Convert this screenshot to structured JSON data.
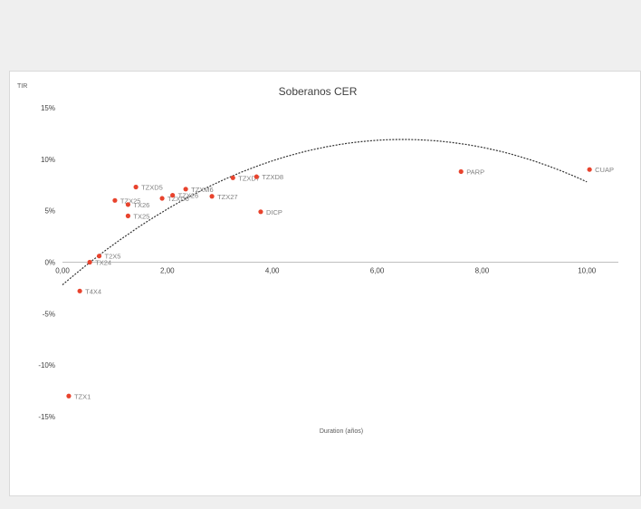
{
  "chart_data": {
    "type": "scatter",
    "title": "Soberanos CER",
    "xlabel": "Duration (años)",
    "ylabel": "TIR",
    "xlim": [
      0,
      10.6
    ],
    "ylim": [
      -15,
      15
    ],
    "x_ticks": [
      "0,00",
      "2,00",
      "4,00",
      "6,00",
      "8,00",
      "10,00"
    ],
    "x_tick_values": [
      0,
      2,
      4,
      6,
      8,
      10
    ],
    "y_ticks": [
      "15%",
      "10%",
      "5%",
      "0%",
      "-5%",
      "-10%",
      "-15%"
    ],
    "y_tick_values": [
      15,
      10,
      5,
      0,
      -5,
      -10,
      -15
    ],
    "grid": false,
    "marker_color": "#e8432d",
    "trend_color": "#333333",
    "trendline": {
      "type": "polynomial",
      "coefficients": [
        -2.2,
        4.35,
        -0.335
      ]
    },
    "points": [
      {
        "label": "TZX1",
        "x": 0.12,
        "y": -13.0
      },
      {
        "label": "T4X4",
        "x": 0.33,
        "y": -2.8
      },
      {
        "label": "TX24",
        "x": 0.52,
        "y": 0.0
      },
      {
        "label": "T2X5",
        "x": 0.7,
        "y": 0.6
      },
      {
        "label": "TZX25",
        "x": 1.0,
        "y": 6.0
      },
      {
        "label": "TX26",
        "x": 1.25,
        "y": 5.6
      },
      {
        "label": "TX25",
        "x": 1.25,
        "y": 4.5
      },
      {
        "label": "TZXD5",
        "x": 1.4,
        "y": 7.3
      },
      {
        "label": "TZXD6",
        "x": 1.9,
        "y": 6.2
      },
      {
        "label": "TZX26",
        "x": 2.1,
        "y": 6.5
      },
      {
        "label": "TZXM6",
        "x": 2.35,
        "y": 7.1
      },
      {
        "label": "TZX27",
        "x": 2.85,
        "y": 6.4
      },
      {
        "label": "TZXD7",
        "x": 3.25,
        "y": 8.2
      },
      {
        "label": "TZXD8",
        "x": 3.7,
        "y": 8.3
      },
      {
        "label": "DICP",
        "x": 3.78,
        "y": 4.9
      },
      {
        "label": "PARP",
        "x": 7.6,
        "y": 8.8
      },
      {
        "label": "CUAP",
        "x": 10.05,
        "y": 9.0
      }
    ]
  }
}
